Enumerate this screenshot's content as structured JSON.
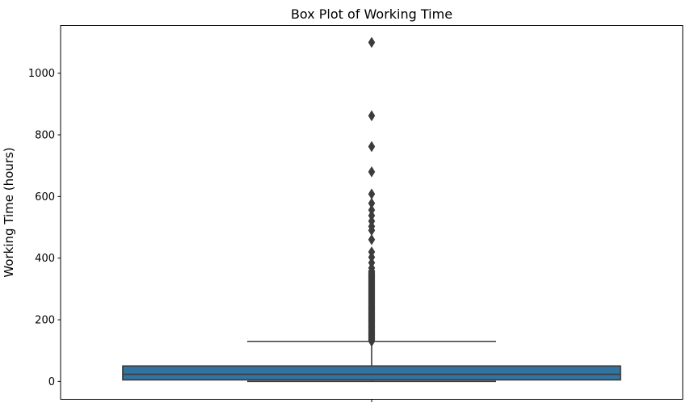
{
  "chart_data": {
    "type": "box",
    "title": "Box Plot of Working Time",
    "xlabel": "",
    "ylabel": "Working Time (hours)",
    "categories": [
      ""
    ],
    "yticks": [
      0,
      200,
      400,
      600,
      800,
      1000
    ],
    "ylim": [
      -58,
      1155
    ],
    "grid": false,
    "legend": "none",
    "orientation": "vertical",
    "series": [
      {
        "name": "Working Time",
        "q1": 5,
        "median": 23,
        "q3": 50,
        "whisker_low": 0,
        "whisker_high": 130,
        "outliers": [
          130,
          133,
          136,
          139,
          142,
          145,
          148,
          151,
          154,
          157,
          160,
          163,
          166,
          169,
          172,
          175,
          178,
          181,
          184,
          187,
          190,
          193,
          196,
          199,
          202,
          205,
          208,
          211,
          214,
          217,
          220,
          223,
          226,
          229,
          232,
          235,
          238,
          241,
          244,
          247,
          250,
          253,
          256,
          259,
          262,
          265,
          268,
          271,
          274,
          277,
          280,
          283,
          286,
          289,
          292,
          295,
          298,
          301,
          304,
          307,
          310,
          313,
          316,
          319,
          322,
          325,
          328,
          331,
          334,
          337,
          340,
          343,
          346,
          349,
          352,
          355,
          358,
          368,
          385,
          403,
          420,
          460,
          490,
          503,
          520,
          538,
          556,
          578,
          608,
          680,
          762,
          862,
          1100
        ]
      }
    ],
    "colors": {
      "box_fill": "#3274A1",
      "box_edge": "#3C3C3C",
      "whisker": "#3C3C3C",
      "median": "#3C3C3C",
      "flier": "#3C3C3C",
      "spine": "#000000",
      "text": "#000000",
      "background": "#FFFFFF"
    }
  }
}
